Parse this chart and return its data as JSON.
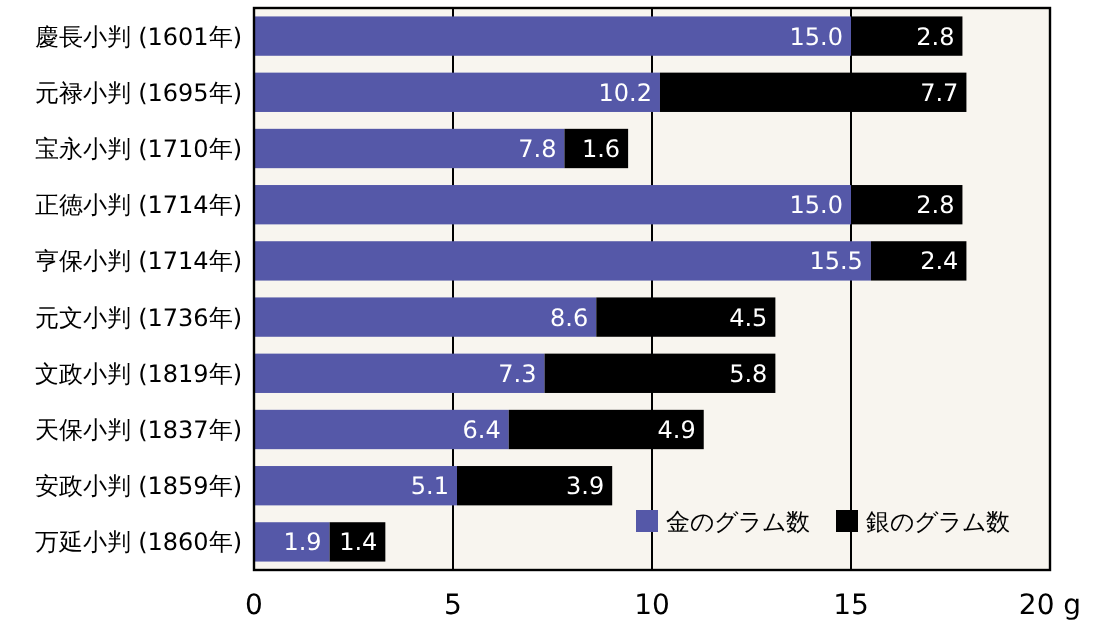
{
  "chart_data": {
    "type": "bar",
    "orientation": "horizontal",
    "stacked": true,
    "categories": [
      "慶長小判 (1601年)",
      "元禄小判 (1695年)",
      "宝永小判 (1710年)",
      "正徳小判 (1714年)",
      "亨保小判 (1714年)",
      "元文小判 (1736年)",
      "文政小判 (1819年)",
      "天保小判 (1837年)",
      "安政小判 (1859年)",
      "万延小判 (1860年)"
    ],
    "series": [
      {
        "name": "金のグラム数",
        "color": "#5558a8",
        "values": [
          15.0,
          10.2,
          7.8,
          15.0,
          15.5,
          8.6,
          7.3,
          6.4,
          5.1,
          1.9
        ],
        "value_labels": [
          "15.0",
          "10.2",
          "7.8",
          "15.0",
          "15.5",
          "8.6",
          "7.3",
          "6.4",
          "5.1",
          "1.9"
        ]
      },
      {
        "name": "銀のグラム数",
        "color": "#000000",
        "values": [
          2.8,
          7.7,
          1.6,
          2.8,
          2.4,
          4.5,
          5.8,
          4.9,
          3.9,
          1.4
        ],
        "value_labels": [
          "2.8",
          "7.7",
          "1.6",
          "2.8",
          "2.4",
          "4.5",
          "5.8",
          "4.9",
          "3.9",
          "1.4"
        ]
      }
    ],
    "xlim": [
      0,
      20
    ],
    "xticks": [
      0,
      5,
      10,
      15,
      {
        "value": 20,
        "label": "20 g"
      }
    ],
    "grid": "x",
    "legend": "bottom right"
  }
}
